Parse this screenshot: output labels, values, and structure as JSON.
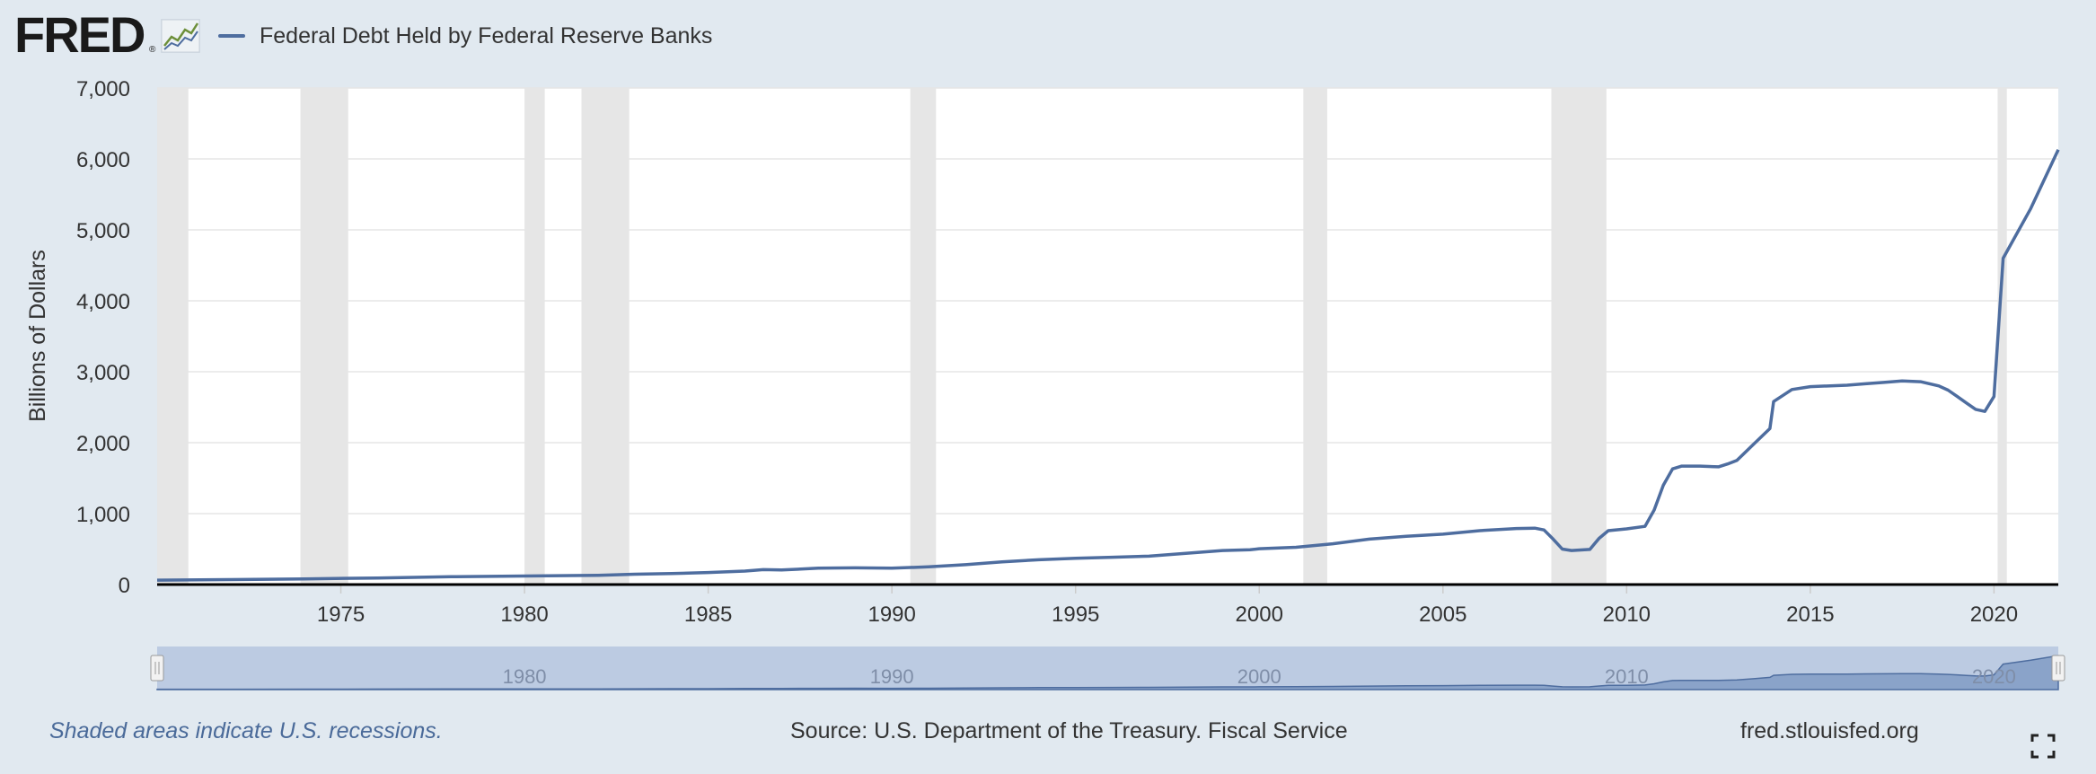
{
  "header": {
    "logo_text": "FRED",
    "logo_reg": "®",
    "legend_label": "Federal Debt Held by Federal Reserve Banks"
  },
  "footer": {
    "recession_note": "Shaded areas indicate U.S. recessions.",
    "source": "Source: U.S. Department of the Treasury. Fiscal Service",
    "site": "fred.stlouisfed.org"
  },
  "colors": {
    "background": "#e1e9f0",
    "plot_background": "#ffffff",
    "series_line": "#4e6d9f",
    "recession_shade": "#e6e6e6",
    "navigator_fill": "#bccbe2"
  },
  "icons": {
    "logo": "fred-chart-icon",
    "fullscreen": "fullscreen-icon"
  },
  "chart_data": {
    "type": "line",
    "title": "",
    "xlabel": "",
    "ylabel": "Billions of Dollars",
    "xlim": [
      1970.0,
      2021.75
    ],
    "ylim": [
      0,
      7000
    ],
    "y_ticks": [
      0,
      1000,
      2000,
      3000,
      4000,
      5000,
      6000,
      7000
    ],
    "y_tick_labels": [
      "0",
      "1,000",
      "2,000",
      "3,000",
      "4,000",
      "5,000",
      "6,000",
      "7,000"
    ],
    "x_ticks": [
      1975,
      1980,
      1985,
      1990,
      1995,
      2000,
      2005,
      2010,
      2015,
      2020
    ],
    "x_tick_labels": [
      "1975",
      "1980",
      "1985",
      "1990",
      "1995",
      "2000",
      "2005",
      "2010",
      "2015",
      "2020"
    ],
    "grid": true,
    "legend": "top-left",
    "recessions": [
      [
        1970.0,
        1970.85
      ],
      [
        1973.9,
        1975.2
      ],
      [
        1980.0,
        1980.55
      ],
      [
        1981.55,
        1982.85
      ],
      [
        1990.5,
        1991.2
      ],
      [
        2001.2,
        2001.85
      ],
      [
        2007.95,
        2009.45
      ],
      [
        2020.1,
        2020.35
      ]
    ],
    "series": [
      {
        "name": "Federal Debt Held by Federal Reserve Banks",
        "x": [
          1970.0,
          1972.0,
          1974.0,
          1976.0,
          1978.0,
          1980.0,
          1982.0,
          1983.0,
          1984.0,
          1985.0,
          1986.0,
          1986.5,
          1987.0,
          1988.0,
          1989.0,
          1990.0,
          1991.0,
          1992.0,
          1993.0,
          1994.0,
          1995.0,
          1996.0,
          1997.0,
          1998.0,
          1999.0,
          1999.75,
          2000.0,
          2001.0,
          2002.0,
          2003.0,
          2004.0,
          2005.0,
          2006.0,
          2007.0,
          2007.5,
          2007.75,
          2008.0,
          2008.25,
          2008.5,
          2009.0,
          2009.25,
          2009.5,
          2010.0,
          2010.5,
          2010.75,
          2011.0,
          2011.25,
          2011.5,
          2012.0,
          2012.5,
          2012.75,
          2013.0,
          2013.5,
          2013.9,
          2014.0,
          2014.5,
          2015.0,
          2016.0,
          2016.5,
          2017.0,
          2017.5,
          2018.0,
          2018.5,
          2018.75,
          2019.0,
          2019.25,
          2019.5,
          2019.75,
          2020.0,
          2020.25,
          2021.0,
          2021.75
        ],
        "values": [
          62,
          70,
          80,
          92,
          110,
          120,
          130,
          145,
          155,
          170,
          190,
          210,
          205,
          230,
          235,
          230,
          250,
          280,
          320,
          350,
          370,
          385,
          400,
          440,
          480,
          490,
          505,
          525,
          575,
          640,
          680,
          710,
          760,
          790,
          795,
          770,
          640,
          500,
          480,
          495,
          650,
          760,
          785,
          820,
          1050,
          1400,
          1630,
          1670,
          1670,
          1660,
          1700,
          1750,
          2000,
          2200,
          2580,
          2750,
          2790,
          2810,
          2830,
          2850,
          2870,
          2860,
          2800,
          2740,
          2650,
          2560,
          2470,
          2440,
          2650,
          4600,
          5300,
          6130
        ]
      }
    ],
    "navigator": {
      "tick_labels": [
        "1980",
        "1990",
        "2000",
        "2010",
        "2020"
      ],
      "tick_values": [
        1980,
        1990,
        2000,
        2010,
        2020
      ]
    }
  }
}
